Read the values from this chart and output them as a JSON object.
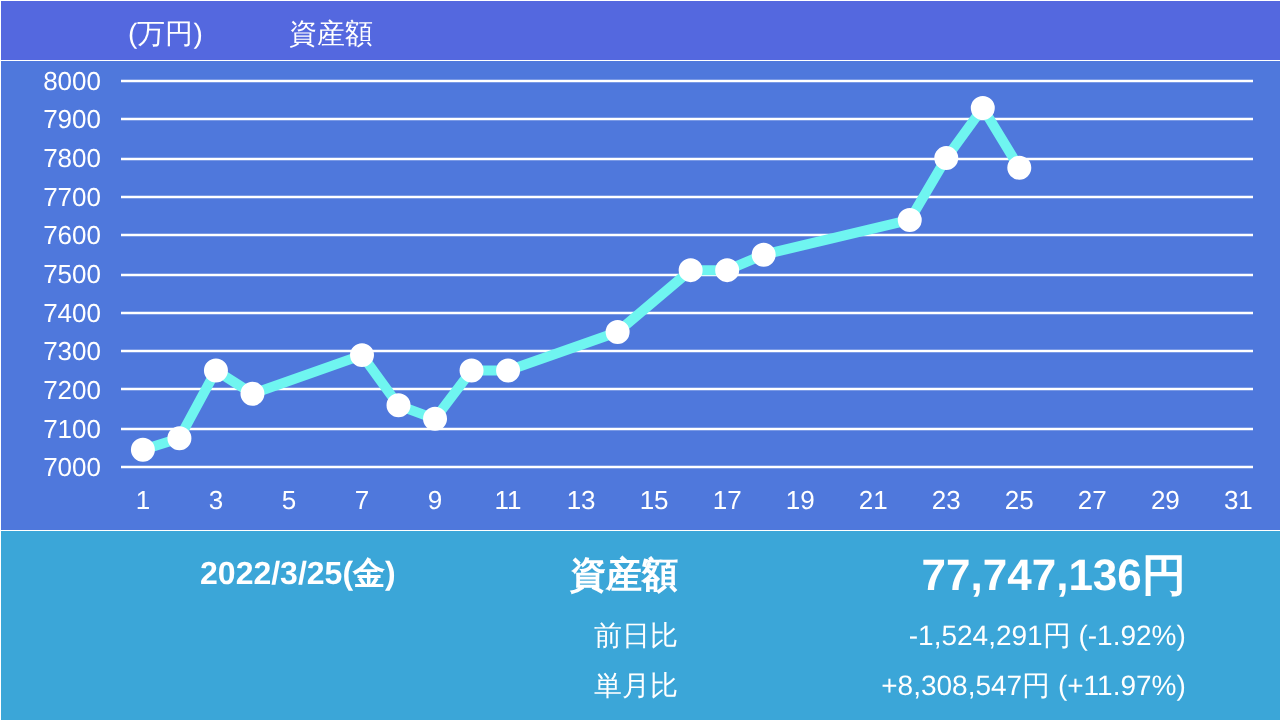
{
  "chart_data": {
    "type": "line",
    "title": "資産額",
    "ylabel": "(万円)",
    "x": [
      1,
      2,
      3,
      4,
      7,
      8,
      9,
      10,
      11,
      14,
      16,
      17,
      18,
      22,
      23,
      24,
      25
    ],
    "series": [
      {
        "color": "#6ff5f0",
        "values": [
          7045,
          7075,
          7250,
          7190,
          7290,
          7160,
          7125,
          7250,
          7250,
          7350,
          7510,
          7510,
          7550,
          7640,
          7800,
          7930,
          7775
        ]
      }
    ],
    "xlim": [
      0.4,
      31.4
    ],
    "xticks": [
      1,
      3,
      5,
      7,
      9,
      11,
      13,
      15,
      17,
      19,
      21,
      23,
      25,
      27,
      29,
      31
    ],
    "ylim": [
      6990,
      8010
    ],
    "yticks": [
      7000,
      7100,
      7200,
      7300,
      7400,
      7500,
      7600,
      7700,
      7800,
      7900,
      8000
    ],
    "grid": "y",
    "marker": "circle",
    "line_style": "solid",
    "annotations": [
      "2022/3/25(金)",
      "資産額",
      "77,747,136円",
      "前日比",
      "-1,524,291円 (-1.92%)",
      "単月比",
      "+8,308,547円 (+11.97%)"
    ]
  }
}
